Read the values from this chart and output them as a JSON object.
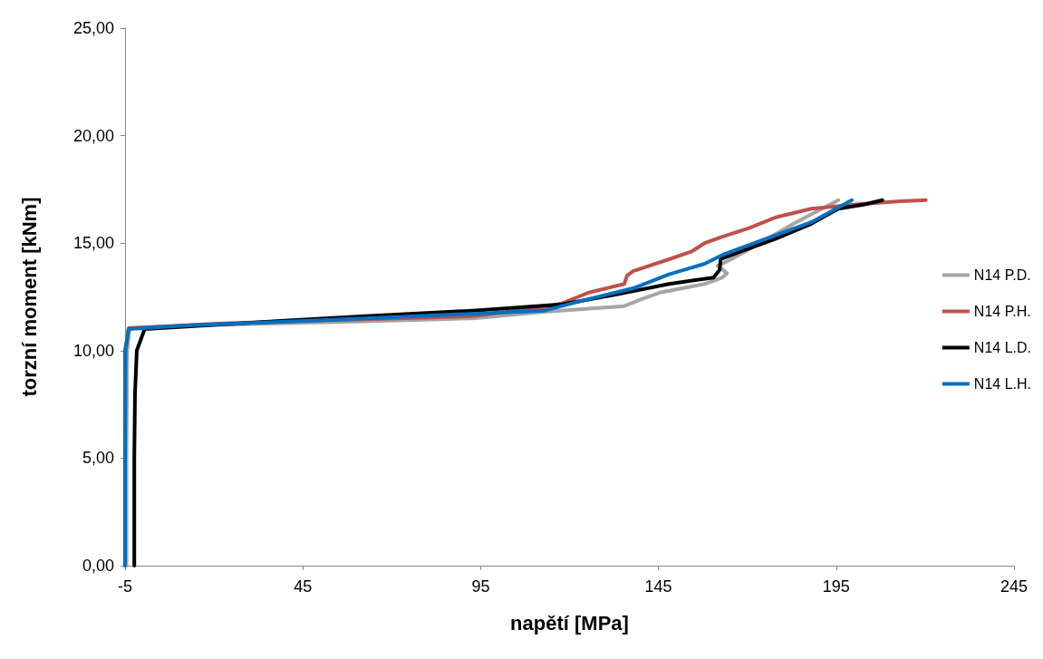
{
  "chart_data": {
    "type": "line",
    "xlabel": "napětí [MPa]",
    "ylabel": "torzní moment [kNm]",
    "xlim": [
      -5,
      245
    ],
    "xticks": [
      -5,
      45,
      95,
      145,
      195,
      245
    ],
    "ylim": [
      0,
      25
    ],
    "yticks": [
      {
        "value": 0,
        "label": "0,00"
      },
      {
        "value": 5,
        "label": "5,00"
      },
      {
        "value": 10,
        "label": "10,00"
      },
      {
        "value": 15,
        "label": "15,00"
      },
      {
        "value": 20,
        "label": "20,00"
      },
      {
        "value": 25,
        "label": "25,00"
      }
    ],
    "grid": false,
    "legend": "right",
    "marker": "none",
    "line_style": "solid",
    "series": [
      {
        "name": "N14 P.D.",
        "color": "#a5a5a5",
        "x": [
          -4.6,
          -4.6,
          -4.4,
          -3.7,
          20,
          60,
          92.8,
          112.9,
          135.4,
          140.4,
          145.4,
          158,
          163,
          164.3,
          161.7,
          165.5,
          174.3,
          183,
          195.6
        ],
        "values": [
          0,
          5,
          10,
          11.05,
          11.2,
          11.35,
          11.5,
          11.8,
          12.07,
          12.4,
          12.7,
          13.1,
          13.4,
          13.6,
          13.95,
          14.25,
          15.07,
          15.9,
          17.0
        ]
      },
      {
        "name": "N14 P.H.",
        "color": "#c0504d",
        "x": [
          -5,
          -5,
          -4.8,
          -4,
          20,
          60,
          92.8,
          112.9,
          117.9,
          125.4,
          132.9,
          135.4,
          136.2,
          137.9,
          148,
          154.2,
          158,
          163,
          170.5,
          178,
          188,
          200.6,
          213,
          220.2
        ],
        "values": [
          0,
          5,
          10,
          11.05,
          11.25,
          11.45,
          11.6,
          12.03,
          12.2,
          12.7,
          13.0,
          13.1,
          13.5,
          13.7,
          14.25,
          14.6,
          15.0,
          15.3,
          15.7,
          16.2,
          16.6,
          16.8,
          16.95,
          17.0
        ]
      },
      {
        "name": "N14 L.D.",
        "color": "#000000",
        "x": [
          -2.4,
          -2.4,
          -2.2,
          -1.7,
          0.5,
          37.6,
          62.7,
          92.8,
          117.9,
          132.9,
          148,
          160.5,
          162.2,
          162.5,
          168,
          178,
          188,
          195.6,
          203,
          208
        ],
        "values": [
          0,
          5,
          8,
          10,
          11,
          11.37,
          11.6,
          11.86,
          12.15,
          12.6,
          13.1,
          13.4,
          13.75,
          14.25,
          14.6,
          15.2,
          15.9,
          16.6,
          16.8,
          17.0
        ]
      },
      {
        "name": "N14 L.H.",
        "color": "#0070c0",
        "x": [
          -5,
          -5,
          -5,
          -4,
          12.6,
          62.7,
          112.9,
          125.4,
          137.9,
          148,
          158,
          163,
          173,
          188,
          199.4
        ],
        "values": [
          0,
          5,
          10,
          11,
          11.17,
          11.5,
          11.86,
          12.4,
          12.9,
          13.55,
          14.04,
          14.45,
          15.07,
          15.97,
          17.0
        ]
      }
    ]
  }
}
